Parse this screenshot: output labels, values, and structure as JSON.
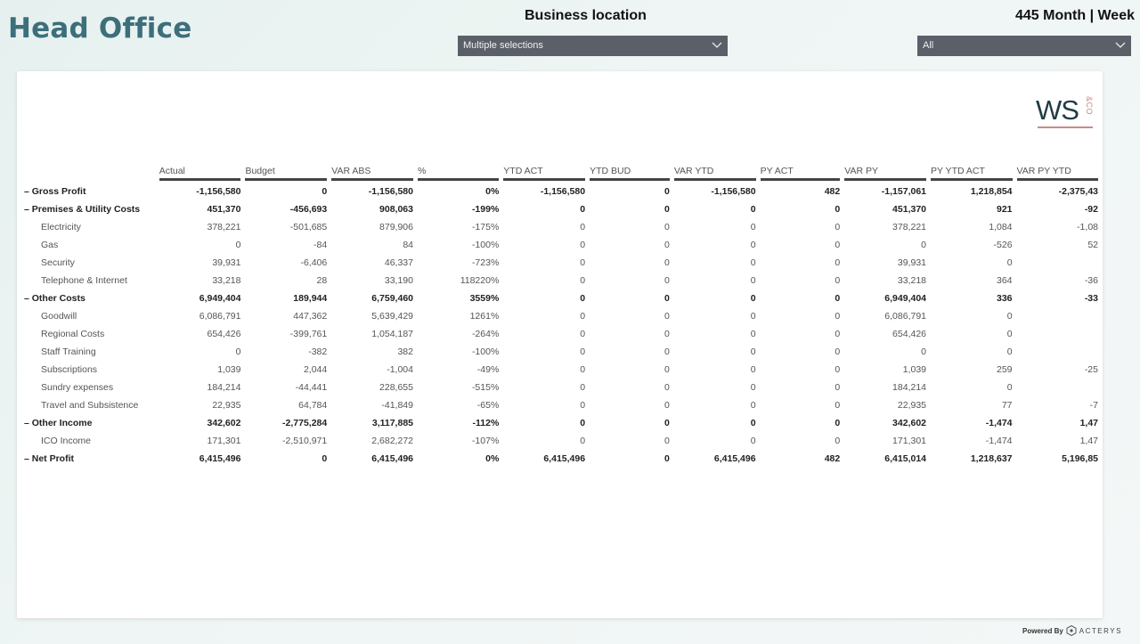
{
  "header": {
    "title": "Head Office",
    "business_location_label": "Business location",
    "business_location_value": "Multiple selections",
    "period_label": "445 Month | Week",
    "period_value": "All"
  },
  "logo": {
    "text": "WS",
    "suffix": "&CO"
  },
  "footer": {
    "powered_by": "Powered By",
    "brand": "ACTERYS"
  },
  "colors": {
    "title": "#3d6f7b",
    "dropdown_bg": "#5b6068",
    "logo_accent": "#c98a88"
  },
  "table": {
    "columns": [
      "Actual",
      "Budget",
      "VAR ABS",
      "%",
      "YTD ACT",
      "YTD BUD",
      "VAR YTD",
      "PY ACT",
      "VAR PY",
      "PY YTD ACT",
      "VAR PY YTD"
    ],
    "rows": [
      {
        "label": "– Gross Profit",
        "bold": true,
        "values": [
          "-1,156,580",
          "0",
          "-1,156,580",
          "0%",
          "-1,156,580",
          "0",
          "-1,156,580",
          "482",
          "-1,157,061",
          "1,218,854",
          "-2,375,43"
        ]
      },
      {
        "label": "– Premises & Utility Costs",
        "bold": true,
        "values": [
          "451,370",
          "-456,693",
          "908,063",
          "-199%",
          "0",
          "0",
          "0",
          "0",
          "451,370",
          "921",
          "-92"
        ]
      },
      {
        "label": "Electricity",
        "bold": false,
        "values": [
          "378,221",
          "-501,685",
          "879,906",
          "-175%",
          "0",
          "0",
          "0",
          "0",
          "378,221",
          "1,084",
          "-1,08"
        ]
      },
      {
        "label": "Gas",
        "bold": false,
        "values": [
          "0",
          "-84",
          "84",
          "-100%",
          "0",
          "0",
          "0",
          "0",
          "0",
          "-526",
          "52"
        ]
      },
      {
        "label": "Security",
        "bold": false,
        "values": [
          "39,931",
          "-6,406",
          "46,337",
          "-723%",
          "0",
          "0",
          "0",
          "0",
          "39,931",
          "0",
          ""
        ]
      },
      {
        "label": "Telephone & Internet",
        "bold": false,
        "values": [
          "33,218",
          "28",
          "33,190",
          "118220%",
          "0",
          "0",
          "0",
          "0",
          "33,218",
          "364",
          "-36"
        ]
      },
      {
        "label": "– Other Costs",
        "bold": true,
        "values": [
          "6,949,404",
          "189,944",
          "6,759,460",
          "3559%",
          "0",
          "0",
          "0",
          "0",
          "6,949,404",
          "336",
          "-33"
        ]
      },
      {
        "label": "Goodwill",
        "bold": false,
        "values": [
          "6,086,791",
          "447,362",
          "5,639,429",
          "1261%",
          "0",
          "0",
          "0",
          "0",
          "6,086,791",
          "0",
          ""
        ]
      },
      {
        "label": "Regional Costs",
        "bold": false,
        "values": [
          "654,426",
          "-399,761",
          "1,054,187",
          "-264%",
          "0",
          "0",
          "0",
          "0",
          "654,426",
          "0",
          ""
        ]
      },
      {
        "label": "Staff Training",
        "bold": false,
        "values": [
          "0",
          "-382",
          "382",
          "-100%",
          "0",
          "0",
          "0",
          "0",
          "0",
          "0",
          ""
        ]
      },
      {
        "label": "Subscriptions",
        "bold": false,
        "values": [
          "1,039",
          "2,044",
          "-1,004",
          "-49%",
          "0",
          "0",
          "0",
          "0",
          "1,039",
          "259",
          "-25"
        ]
      },
      {
        "label": "Sundry expenses",
        "bold": false,
        "values": [
          "184,214",
          "-44,441",
          "228,655",
          "-515%",
          "0",
          "0",
          "0",
          "0",
          "184,214",
          "0",
          ""
        ]
      },
      {
        "label": "Travel and Subsistence",
        "bold": false,
        "values": [
          "22,935",
          "64,784",
          "-41,849",
          "-65%",
          "0",
          "0",
          "0",
          "0",
          "22,935",
          "77",
          "-7"
        ]
      },
      {
        "label": "– Other Income",
        "bold": true,
        "values": [
          "342,602",
          "-2,775,284",
          "3,117,885",
          "-112%",
          "0",
          "0",
          "0",
          "0",
          "342,602",
          "-1,474",
          "1,47"
        ]
      },
      {
        "label": "ICO Income",
        "bold": false,
        "values": [
          "171,301",
          "-2,510,971",
          "2,682,272",
          "-107%",
          "0",
          "0",
          "0",
          "0",
          "171,301",
          "-1,474",
          "1,47"
        ]
      },
      {
        "label": "– Net Profit",
        "bold": true,
        "values": [
          "6,415,496",
          "0",
          "6,415,496",
          "0%",
          "6,415,496",
          "0",
          "6,415,496",
          "482",
          "6,415,014",
          "1,218,637",
          "5,196,85"
        ]
      }
    ]
  }
}
